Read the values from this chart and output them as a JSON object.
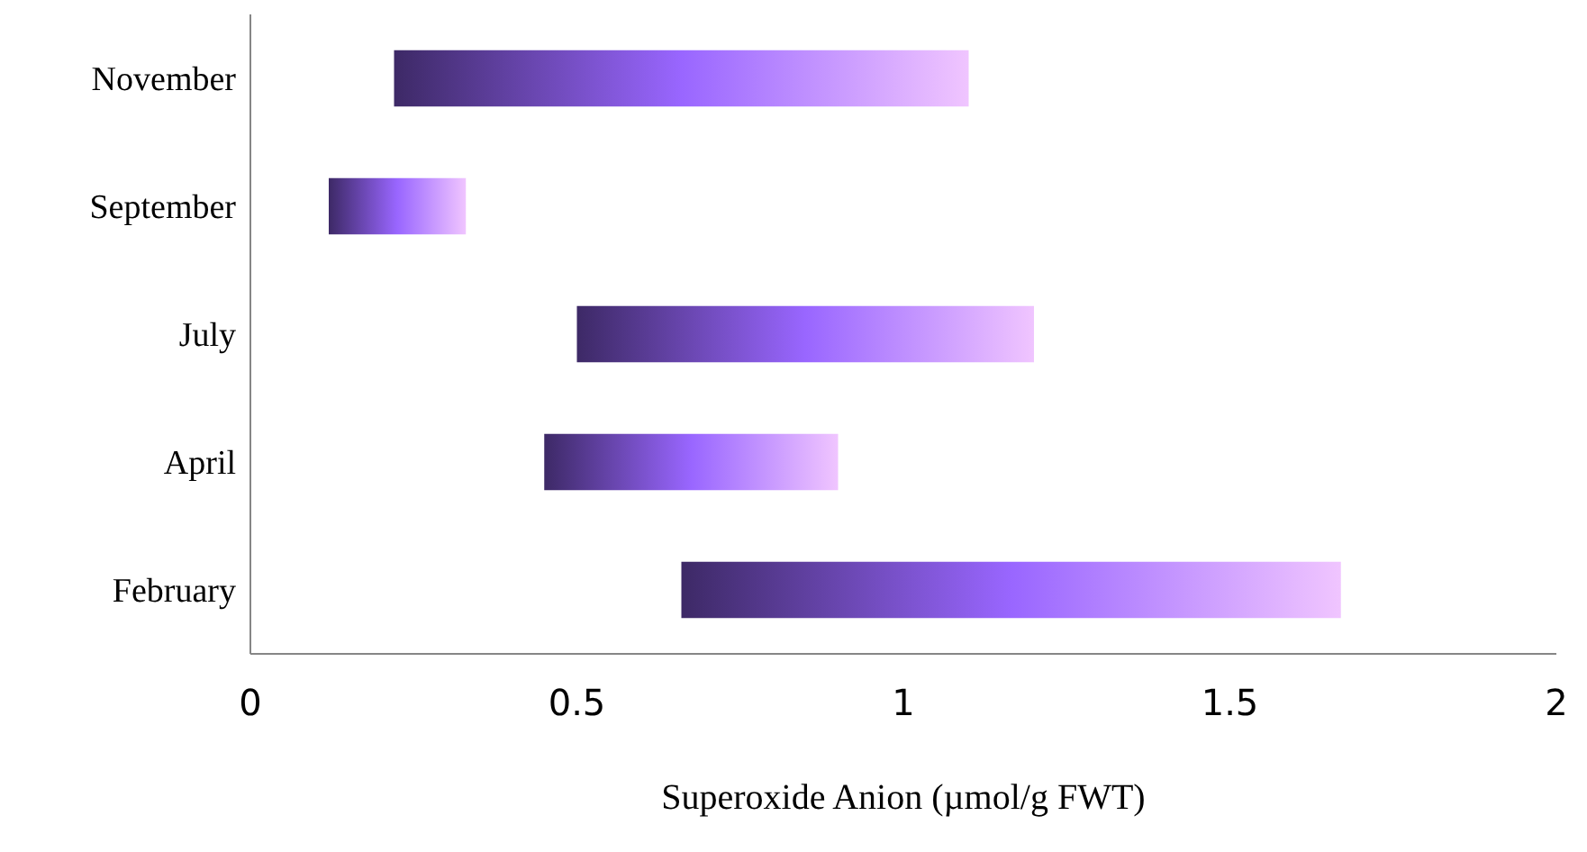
{
  "chart_data": {
    "type": "bar",
    "orientation": "horizontal",
    "xlabel": "Superoxide Anion (µmol/g FWT)",
    "categories": [
      "November",
      "September",
      "July",
      "April",
      "February"
    ],
    "base": [
      0.22,
      0.12,
      0.5,
      0.45,
      0.66
    ],
    "values": [
      0.88,
      0.21,
      0.7,
      0.45,
      1.01
    ],
    "color": "#9966ff",
    "xlim": [
      0,
      2
    ],
    "xticks": [
      0,
      0.5,
      1,
      1.5,
      2
    ],
    "grid": false,
    "legend": false
  }
}
